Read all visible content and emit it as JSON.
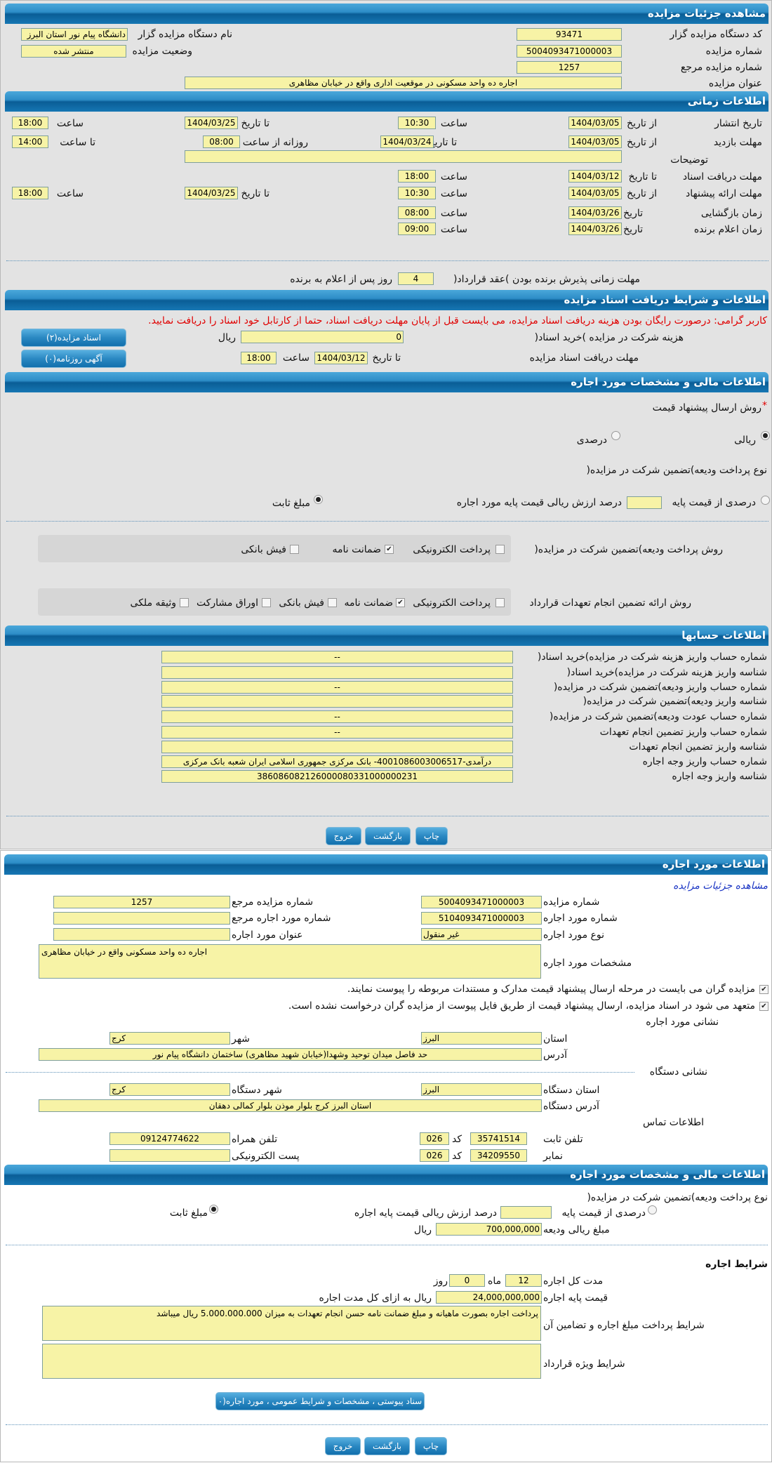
{
  "colors": {
    "header": "#2d8dc7",
    "field": "#f7f3a6",
    "warning": "#e00000",
    "link": "#1a35c4"
  },
  "details": {
    "title": "مشاهده جزئیات مزایده",
    "org_code_label": "کد دستگاه مزایده گزار",
    "org_code": "93471",
    "org_name_label": "نام دستگاه مزایده گزار",
    "org_name": "دانشگاه پیام نور استان البرز",
    "auction_no_label": "شماره مزایده",
    "auction_no": "5004093471000003",
    "status_label": "وضعیت مزایده",
    "status": "منتشر شده",
    "ref_no_label": "شماره مزایده مرجع",
    "ref_no": "1257",
    "subject_label": "عنوان مزایده",
    "subject": "اجاره ده واحد مسکونی در موقعیت اداری واقع در خیابان مظاهری"
  },
  "timing": {
    "title": "اطلاعات زمانی",
    "from_date": "از تاریخ",
    "to_date": "تا تاریخ",
    "date": "تاریخ",
    "hour": "ساعت",
    "to_hour": "تا ساعت",
    "daily_from": "روزانه از ساعت",
    "publish_label": "تاریخ انتشار",
    "publish_from": "1404/03/05",
    "publish_from_time": "10:30",
    "publish_to": "1404/03/25",
    "publish_to_time": "18:00",
    "visit_label": "مهلت بازدید",
    "visit_from": "1404/03/05",
    "visit_to": "1404/03/24",
    "visit_daily_from": "08:00",
    "visit_daily_to": "14:00",
    "notes_label": "توضیحات",
    "notes": "",
    "docs_label": "مهلت دریافت اسناد",
    "docs_to": "1404/03/12",
    "docs_to_time": "18:00",
    "offer_label": "مهلت ارائه پیشنهاد",
    "offer_from": "1404/03/05",
    "offer_from_time": "10:30",
    "offer_to": "1404/03/25",
    "offer_to_time": "18:00",
    "opening_label": "زمان بازگشایی",
    "opening_date": "1404/03/26",
    "opening_time": "08:00",
    "winner_label": "زمان اعلام برنده",
    "winner_date": "1404/03/26",
    "winner_time": "09:00",
    "accept_label": "مهلت زمانی پذیرش برنده بودن )عقد قرارداد(",
    "accept_days": "4",
    "accept_suffix": "روز پس از اعلام به برنده"
  },
  "docs": {
    "title": "اطلاعات و شرایط دریافت اسناد مزایده",
    "warning": "کاربر گرامی: درصورت رایگان بودن هزینه دریافت اسناد مزایده، می بایست قبل از پایان مهلت دریافت اسناد، حتما از کارتابل خود اسناد را دریافت نمایید.",
    "fee_label": "هزینه شرکت در مزایده )خرید اسناد(",
    "fee": "0",
    "rial": "ریال",
    "deadline_label": "مهلت دریافت اسناد مزایده",
    "to_date": "تا تاریخ",
    "deadline_date": "1404/03/12",
    "hour": "ساعت",
    "deadline_time": "18:00",
    "docs_button": "اسناد مزایده(۲)",
    "ads_button": "آگهی روزنامه(۰)"
  },
  "finance": {
    "title": "اطلاعات مالی و مشخصات مورد اجاره",
    "required_mark": "*",
    "method_label": "روش ارسال پیشنهاد قیمت",
    "rial_option": "ریالی",
    "percent_option": "درصدی",
    "method_selected": "ریالی",
    "deposit_type_label": "نوع پرداخت ودیعه)تضمین شرکت در مزایده(",
    "percent_of_base": "درصدی از قیمت پایه",
    "percent_value": "",
    "percent_suffix": "درصد ارزش ریالی قیمت پایه مورد اجاره",
    "fixed": "مبلغ ثابت",
    "deposit_type_selected": "مبلغ ثابت",
    "deposit_method_label": "روش پرداخت ودیعه)تضمین شرکت در مزایده(",
    "deposit_methods": [
      {
        "label": "پرداخت الکترونیکی",
        "checked": false
      },
      {
        "label": "ضمانت نامه",
        "checked": true
      },
      {
        "label": "فیش بانکی",
        "checked": false
      }
    ],
    "guarantee_label": "روش ارائه تضمین انجام تعهدات قرارداد",
    "guarantee_methods": [
      {
        "label": "پرداخت الکترونیکی",
        "checked": false
      },
      {
        "label": "ضمانت نامه",
        "checked": true
      },
      {
        "label": "فیش بانکی",
        "checked": false
      },
      {
        "label": "اوراق مشارکت",
        "checked": false
      },
      {
        "label": "وثیقه ملکی",
        "checked": false
      }
    ]
  },
  "accounts": {
    "title": "اطلاعات حسابها",
    "rows": [
      {
        "label": "شماره حساب واریز هزینه شرکت در مزایده)خرید اسناد(",
        "value": "--"
      },
      {
        "label": "شناسه واریز هزینه شرکت در مزایده)خرید اسناد(",
        "value": ""
      },
      {
        "label": "شماره حساب واریز ودیعه)تضمین شرکت در مزایده(",
        "value": "--"
      },
      {
        "label": "شناسه واریز ودیعه)تضمین شرکت در مزایده(",
        "value": ""
      },
      {
        "label": "شماره حساب عودت ودیعه)تضمین شرکت در مزایده(",
        "value": "--"
      },
      {
        "label": "شماره حساب واریز تضمین انجام تعهدات",
        "value": "--"
      },
      {
        "label": "شناسه واریز تضمین انجام تعهدات",
        "value": ""
      },
      {
        "label": "شماره حساب واریز وجه اجاره",
        "value": "درآمدی-4001086003006517- بانک مرکزی جمهوری اسلامی ایران شعبه بانک مرکزی"
      },
      {
        "label": "شناسه واریز وجه اجاره",
        "value": "386086082126000080331000000231"
      }
    ]
  },
  "actions": {
    "print": "چاپ",
    "back": "بازگشت",
    "exit": "خروج"
  },
  "item": {
    "title": "اطلاعات مورد اجاره",
    "view_link": "مشاهده جزئیات مزایده",
    "auction_no_label": "شماره مزایده",
    "auction_no": "5004093471000003",
    "ref_no_label": "شماره مزایده مرجع",
    "ref_no": "1257",
    "item_no_label": "شماره مورد اجاره",
    "item_no": "5104093471000003",
    "item_ref_label": "شماره مورد اجاره مرجع",
    "item_ref": "",
    "type_label": "نوع مورد اجاره",
    "type": "غیر منقول",
    "item_title_label": "عنوان مورد اجاره",
    "item_title": "",
    "spec_label": "مشخصات مورد اجاره",
    "spec": "اجاره ده واحد مسکونی واقع در خیابان مظاهری",
    "check1": "مزایده گران می بایست در مرحله ارسال پیشنهاد قیمت مدارک و مستندات مربوطه را پیوست نمایند.",
    "check2": "متعهد می شود در اسناد مزایده، ارسال پیشنهاد قیمت از طریق فایل پیوست از مزایده گران درخواست نشده است.",
    "address_title": "نشانی مورد اجاره",
    "province_label": "استان",
    "province": "البرز",
    "city_label": "شهر",
    "city": "کرج",
    "address_label": "آدرس",
    "address": "حد فاصل میدان توحید وشهدا(خیابان شهید مظاهری) ساختمان دانشگاه پیام نور",
    "org_address_title": "نشانی دستگاه",
    "org_province_label": "استان دستگاه",
    "org_province": "البرز",
    "org_city_label": "شهر دستگاه",
    "org_city": "کرج",
    "org_address_label": "آدرس دستگاه",
    "org_address": "استان البرز کرج بلوار موذن بلوار کمالی دهقان",
    "contact_title": "اطلاعات تماس",
    "phone_label": "تلفن ثابت",
    "phone": "35741514",
    "code_label": "کد",
    "phone_code": "026",
    "mobile_label": "تلفن همراه",
    "mobile": "09124774622",
    "fax_label": "نمابر",
    "fax": "34209550",
    "fax_code": "026",
    "email_label": "پست الکترونیکی",
    "email": ""
  },
  "item_finance": {
    "title": "اطلاعات مالی و مشخصات مورد اجاره",
    "deposit_type_label": "نوع پرداخت ودیعه)تضمین شرکت در مزایده(",
    "percent_of_base": "درصدی از قیمت پایه",
    "percent_value": "",
    "percent_suffix": "درصد ارزش ریالی قیمت پایه اجاره",
    "fixed": "مبلغ ثابت",
    "selected": "مبلغ ثابت",
    "deposit_amount_label": "مبلغ ریالی ودیعه",
    "deposit_amount": "700,000,000",
    "rial": "ریال",
    "terms_title": "شرایط اجاره",
    "duration_label": "مدت کل اجاره",
    "months": "12",
    "month_unit": "ماه",
    "days": "0",
    "day_unit": "روز",
    "base_price_label": "قیمت پایه اجاره",
    "base_price": "24,000,000,000",
    "base_price_suffix": "ریال به ازای کل مدت اجاره",
    "payment_terms_label": "شرایط پرداخت مبلغ اجاره و تضامین آن",
    "payment_terms": "پرداخت اجاره بصورت ماهیانه و مبلغ ضمانت نامه حسن انجام تعهدات به میزان 5.000.000.000 ریال میباشد",
    "special_terms_label": "شرایط ویژه قرارداد",
    "special_terms": "",
    "attachments_button": "سناد پیوستی ، مشخصات و شرایط عمومی ، مورد اجاره(۰"
  }
}
